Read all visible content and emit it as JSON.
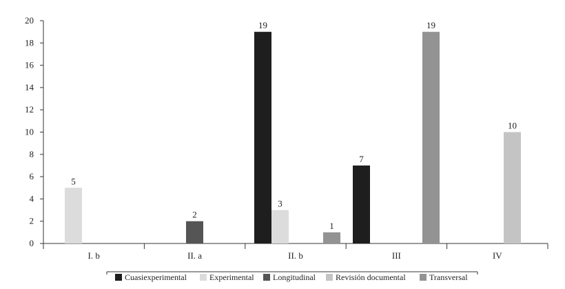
{
  "chart_data": {
    "type": "bar",
    "categories": [
      "I. b",
      "II. a",
      "II. b",
      "III",
      "IV"
    ],
    "ylim": [
      0,
      20
    ],
    "yticks": [
      0,
      2,
      4,
      6,
      8,
      10,
      12,
      14,
      16,
      18,
      20
    ],
    "grid": false,
    "legend_position": "bottom",
    "series": [
      {
        "name": "Cuasiexperimental",
        "color": "#1e1e1e",
        "values": [
          null,
          null,
          19,
          7,
          null
        ]
      },
      {
        "name": "Experimental",
        "color": "#dcdcdc",
        "values": [
          5,
          null,
          3,
          null,
          null
        ]
      },
      {
        "name": "Longitudinal",
        "color": "#555555",
        "values": [
          null,
          2,
          null,
          null,
          null
        ]
      },
      {
        "name": "Revisión documental",
        "color": "#c4c4c4",
        "values": [
          null,
          null,
          null,
          null,
          10
        ]
      },
      {
        "name": "Transversal",
        "color": "#939393",
        "values": [
          null,
          null,
          1,
          19,
          null
        ]
      }
    ]
  }
}
